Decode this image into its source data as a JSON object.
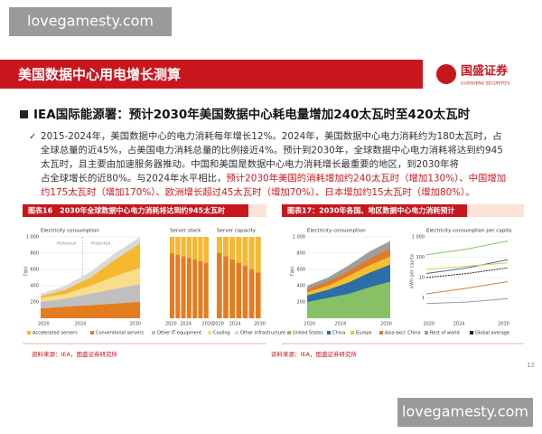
{
  "watermarks": [
    "lovegamesty.com",
    "lovegamesty.com"
  ],
  "header": {
    "title": "美国数据中心用电增长测算",
    "logo_name": "国盛证券",
    "logo_sub": "GUOSHENG SECURITIES"
  },
  "headline": "IEA国际能源署：预计2030年美国数据中心耗电量增加240太瓦时至420太瓦时",
  "paragraph": [
    [
      {
        "text": "2015-2024年，美国数据中心的电力消耗每年增长12%。2024年，美国数据中心电力消耗约为180太瓦时，占",
        "highlight": false
      }
    ],
    [
      {
        "text": "全球总量的近45%，占美国电力消耗总量的比例接近4%。预计到2030年，全球数据中心电力消耗将达到约945",
        "highlight": false
      }
    ],
    [
      {
        "text": "太瓦时，且主要由加速服务器推动。中国和美国是数据中心电力消耗增长最重要的地区，到2030年将",
        "highlight": false
      }
    ],
    [
      {
        "text": "占全球增长的近80%。与2024年水平相比，",
        "highlight": false
      },
      {
        "text": "预计2030年美国的消耗增加约240太瓦时（增加130%）、中国增加",
        "highlight": true
      }
    ],
    [
      {
        "text": "约175太瓦时（增加170%）、欧洲增长超过45太瓦时（增加70%）、日本增加约15太瓦时（增加80%）。",
        "highlight": true
      }
    ]
  ],
  "figures": [
    {
      "caption": "图表16　2030年全球数据中心电力消耗将达到约945太瓦时",
      "panels": [
        {
          "title": "Electricity consumption",
          "unit": "TWh",
          "notes": [
            "Historical",
            "Projected"
          ],
          "yticks": [
            "1 000",
            "800",
            "600",
            "400",
            "200"
          ],
          "xticks": [
            "2020",
            "2024",
            "2030"
          ]
        },
        {
          "title": "Server stock",
          "unit": null,
          "notes": [],
          "yticks": [],
          "xticks": [
            "2020",
            "2024",
            "2030"
          ]
        },
        {
          "title": "Server capacity",
          "unit": null,
          "notes": [],
          "yticks": [],
          "xticks": [
            "2020",
            "2024",
            "2030"
          ]
        }
      ],
      "legend": [
        "Accelerated servers",
        "Conventional servers",
        "Other IT equipment",
        "Cooling",
        "Other infrastructure"
      ],
      "source": "资料来源：IEA，国盛证券研究所"
    },
    {
      "caption": "图表17：2030年各国、地区数据中心电力消耗预计",
      "panels": [
        {
          "title": "Electricity consumption",
          "unit": "TWh",
          "notes": [],
          "yticks": [
            "1 000",
            "800",
            "600",
            "400",
            "200"
          ],
          "xticks": [
            "2020",
            "2024",
            "2030"
          ]
        },
        {
          "title": "Electricity consumption per capita",
          "unit": "kWh per capita",
          "notes": [],
          "yticks": [
            "1 000",
            "100",
            "10",
            "1"
          ],
          "xticks": [
            "2020",
            "2024",
            "2030"
          ]
        }
      ],
      "legend": [
        "United States",
        "China",
        "Europe",
        "Asia excl. China",
        "Rest of world",
        "Global average"
      ],
      "source": "资料来源：IEA，国盛证券研究所"
    }
  ],
  "page_number": "12"
}
